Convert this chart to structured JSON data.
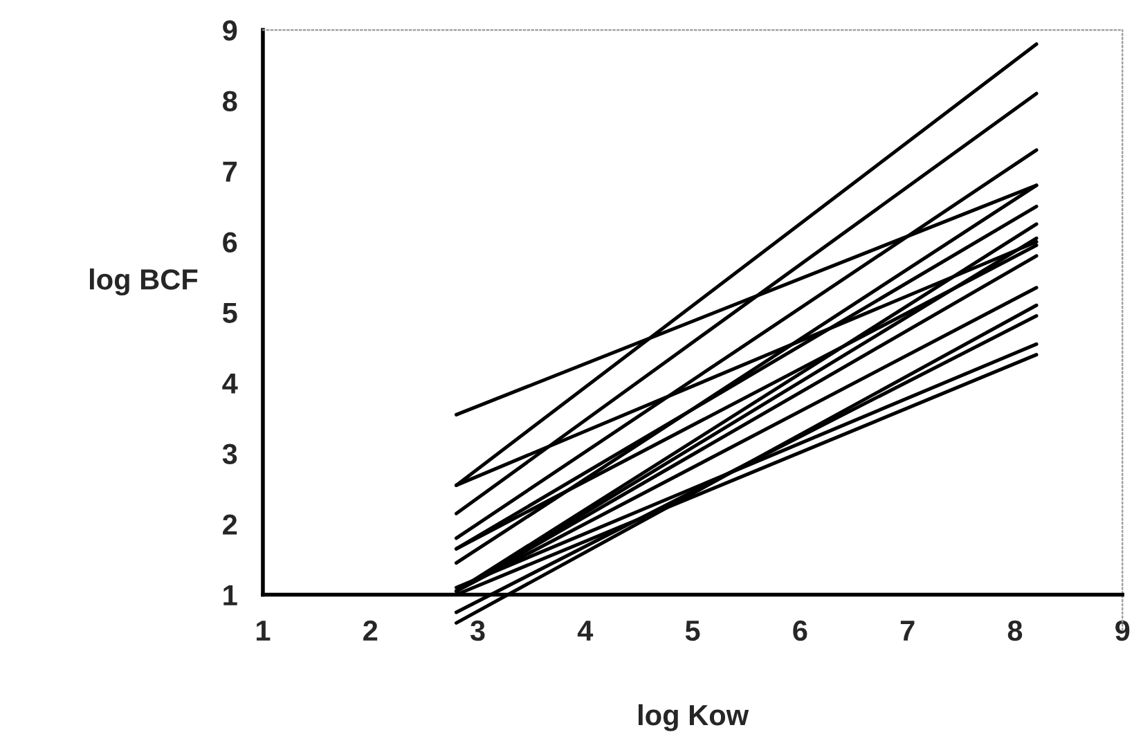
{
  "chart_data": {
    "type": "line",
    "xlabel": "log Kow",
    "ylabel": "log BCF",
    "xlim": [
      1,
      9
    ],
    "ylim": [
      0.5,
      9
    ],
    "xticks": [
      1,
      2,
      3,
      4,
      5,
      6,
      7,
      8,
      9
    ],
    "yticks": [
      1,
      2,
      3,
      4,
      5,
      6,
      7,
      8,
      9
    ],
    "grid": false,
    "legend": false,
    "marker": "none",
    "line_style": "solid",
    "x": [
      2.8,
      8.2
    ],
    "series": [
      {
        "color": "#000000",
        "values": [
          3.55,
          6.8
        ]
      },
      {
        "color": "#000000",
        "values": [
          2.55,
          8.8
        ]
      },
      {
        "color": "#000000",
        "values": [
          2.55,
          6.0
        ]
      },
      {
        "color": "#000000",
        "values": [
          2.15,
          8.1
        ]
      },
      {
        "color": "#000000",
        "values": [
          1.8,
          7.3
        ]
      },
      {
        "color": "#000000",
        "values": [
          1.65,
          6.5
        ]
      },
      {
        "color": "#000000",
        "values": [
          1.65,
          5.95
        ]
      },
      {
        "color": "#000000",
        "values": [
          1.45,
          6.8
        ]
      },
      {
        "color": "#000000",
        "values": [
          1.05,
          6.25
        ]
      },
      {
        "color": "#000000",
        "values": [
          1.05,
          6.05
        ]
      },
      {
        "color": "#000000",
        "values": [
          1.05,
          5.8
        ]
      },
      {
        "color": "#000000",
        "values": [
          1.05,
          5.35
        ]
      },
      {
        "color": "#000000",
        "values": [
          1.1,
          4.55
        ]
      },
      {
        "color": "#000000",
        "values": [
          1.0,
          4.4
        ]
      },
      {
        "color": "#000000",
        "values": [
          0.6,
          5.1
        ]
      },
      {
        "color": "#000000",
        "values": [
          0.75,
          4.95
        ]
      }
    ]
  }
}
